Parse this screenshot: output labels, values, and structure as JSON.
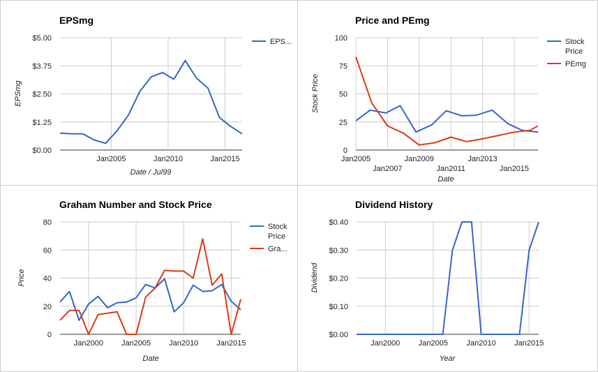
{
  "chart_data": [
    {
      "id": "eps",
      "type": "line",
      "title": "EPSmg",
      "xlabel": "Date / Jul99",
      "ylabel": "EPSmg",
      "ylim": [
        0,
        5
      ],
      "xlim": [
        2000.5,
        2016.5
      ],
      "y_ticks": [
        0,
        1.25,
        2.5,
        3.75,
        5
      ],
      "y_tick_labels": [
        "$0.00",
        "$1.25",
        "$2.50",
        "$3.75",
        "$5.00"
      ],
      "x_ticks": [
        2005,
        2010,
        2015
      ],
      "x_tick_labels": [
        "Jan2005",
        "Jan2010",
        "Jan2015"
      ],
      "grid": true,
      "legend": "right",
      "series": [
        {
          "name": "EPS...",
          "color": "#3366cc",
          "x": [
            2000.5,
            2001.5,
            2002.5,
            2003.5,
            2004.5,
            2005.5,
            2006.5,
            2007.5,
            2008.5,
            2009.5,
            2010.5,
            2011.5,
            2012.5,
            2013.5,
            2014.5,
            2015.5,
            2016.5
          ],
          "y": [
            0.75,
            0.72,
            0.72,
            0.45,
            0.3,
            0.85,
            1.55,
            2.6,
            3.25,
            3.45,
            3.15,
            3.98,
            3.2,
            2.75,
            1.45,
            1.05,
            0.72
          ]
        }
      ]
    },
    {
      "id": "pe",
      "type": "line",
      "title": "Price and PEmg",
      "xlabel": "Date",
      "ylabel": "Stock Price",
      "ylim": [
        0,
        100
      ],
      "xlim": [
        2005,
        2016.5
      ],
      "y_ticks": [
        0,
        25,
        50,
        75,
        100
      ],
      "y_tick_labels": [
        "0",
        "25",
        "50",
        "75",
        "100"
      ],
      "x_ticks": [
        2005,
        2007,
        2009,
        2011,
        2013,
        2015
      ],
      "x_tick_labels": [
        "Jan2005",
        "Jan2007",
        "Jan2009",
        "Jan2011",
        "Jan2013",
        "Jan2015"
      ],
      "grid": true,
      "legend": "right",
      "series": [
        {
          "name": "Stock Price",
          "color": "#3366cc",
          "x": [
            2005,
            2005.9,
            2006.9,
            2007.8,
            2008.8,
            2009.8,
            2010.7,
            2011.7,
            2012.6,
            2013.6,
            2014.6,
            2015.5,
            2016.5
          ],
          "y": [
            26,
            35.5,
            33,
            39.5,
            16,
            22.5,
            35,
            30.5,
            31,
            35.5,
            23.5,
            17.5,
            16
          ]
        },
        {
          "name": "PEmg",
          "color": "#dc3912",
          "x": [
            2005,
            2006,
            2007,
            2008,
            2009,
            2010,
            2011,
            2012,
            2013,
            2014,
            2015,
            2016,
            2016.5
          ],
          "y": [
            83,
            42,
            21.5,
            15,
            4.5,
            6.5,
            11.5,
            7.5,
            10,
            13,
            16,
            17.5,
            21.5
          ]
        }
      ]
    },
    {
      "id": "graham",
      "type": "line",
      "title": "Graham Number and Stock Price",
      "xlabel": "Date",
      "ylabel": "Price",
      "ylim": [
        0,
        80
      ],
      "xlim": [
        1997,
        2016
      ],
      "y_ticks": [
        0,
        20,
        40,
        60,
        80
      ],
      "y_tick_labels": [
        "0",
        "20",
        "40",
        "60",
        "80"
      ],
      "x_ticks": [
        2000,
        2005,
        2010,
        2015
      ],
      "x_tick_labels": [
        "Jan2000",
        "Jan2005",
        "Jan2010",
        "Jan2015"
      ],
      "grid": true,
      "legend": "right",
      "series": [
        {
          "name": "Stock Price",
          "color": "#3366cc",
          "x": [
            1997,
            1998,
            1999,
            2000,
            2001,
            2002,
            2003,
            2004,
            2005,
            2006,
            2007,
            2008,
            2009,
            2010,
            2011,
            2012,
            2013,
            2014,
            2015,
            2016
          ],
          "y": [
            23,
            30.5,
            10,
            21.5,
            27,
            19,
            22.5,
            23,
            26,
            35.5,
            33,
            39.5,
            16,
            22.5,
            35,
            30.5,
            31,
            35.5,
            23.5,
            17.5
          ]
        },
        {
          "name": "Gra...",
          "color": "#dc3912",
          "x": [
            1997,
            1998,
            1999,
            2000,
            2001,
            2002,
            2003,
            2004,
            2005,
            2006,
            2007,
            2008,
            2009,
            2010,
            2011,
            2012,
            2013,
            2014,
            2015,
            2016
          ],
          "y": [
            10,
            17,
            17,
            0,
            14,
            15,
            16,
            0,
            0,
            26.5,
            33,
            45.5,
            45,
            45,
            40,
            68,
            35,
            43,
            0,
            25
          ]
        }
      ]
    },
    {
      "id": "dividend",
      "type": "line",
      "title": "Dividend History",
      "xlabel": "Year",
      "ylabel": "Dividend",
      "ylim": [
        0,
        0.4
      ],
      "xlim": [
        1997,
        2016
      ],
      "y_ticks": [
        0,
        0.1,
        0.2,
        0.3,
        0.4
      ],
      "y_tick_labels": [
        "$0.00",
        "$0.10",
        "$0.20",
        "$0.30",
        "$0.40"
      ],
      "x_ticks": [
        2000,
        2005,
        2010,
        2015
      ],
      "x_tick_labels": [
        "Jan2000",
        "Jan2005",
        "Jan2010",
        "Jan2015"
      ],
      "grid": true,
      "legend": "none",
      "series": [
        {
          "name": "",
          "color": "#3366cc",
          "x": [
            1997,
            2006,
            2007,
            2008,
            2009,
            2010,
            2011,
            2012,
            2013,
            2014,
            2015,
            2016
          ],
          "y": [
            0,
            0,
            0.3,
            0.4,
            0.4,
            0,
            0,
            0,
            0,
            0,
            0.3,
            0.4
          ]
        }
      ]
    }
  ]
}
